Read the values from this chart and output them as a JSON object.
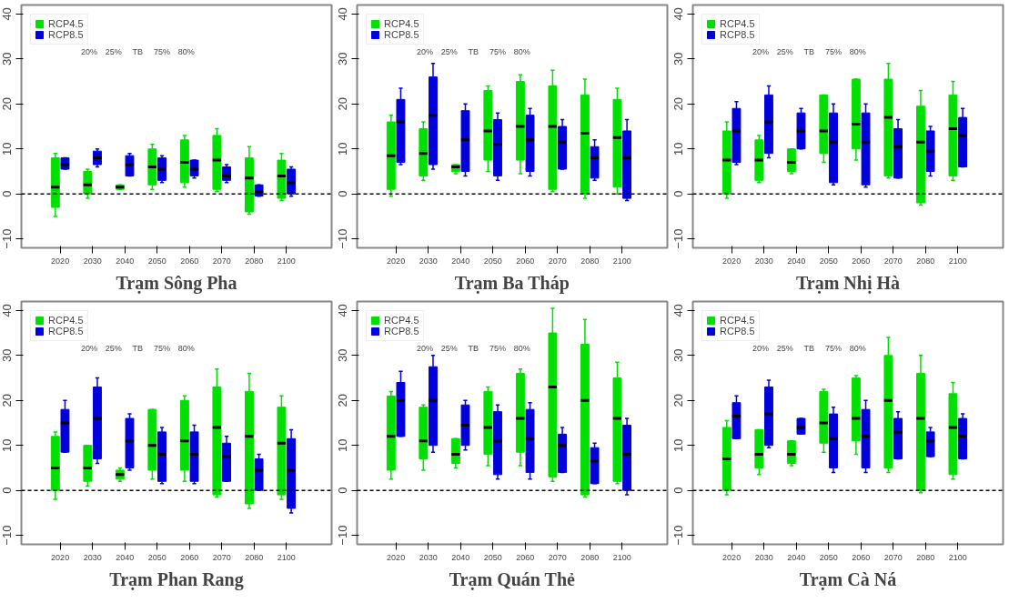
{
  "chart_data": [
    {
      "type": "box",
      "title": "Trạm Sông Pha",
      "categories": [
        "2020",
        "2030",
        "2040",
        "2050",
        "2060",
        "2070",
        "2080",
        "2100"
      ],
      "ylim": [
        -12,
        42
      ],
      "yticks": [
        -10,
        0,
        10,
        20,
        30,
        40
      ],
      "grid": false,
      "legend": "top left",
      "ref_lines": [
        {
          "axis": "y",
          "value": 0,
          "line_style": "dashed"
        }
      ],
      "annotations": [
        "20%",
        "25%",
        "TB",
        "75%",
        "80%"
      ],
      "series": [
        {
          "name": "RCP4.5",
          "color": "#00e000",
          "boxes": [
            {
              "low": -5,
              "q1": -3,
              "median": 1.5,
              "q3": 8,
              "high": 9
            },
            {
              "low": -1,
              "q1": 0,
              "median": 2,
              "q3": 5,
              "high": 5.5
            },
            {
              "low": 1,
              "q1": 1,
              "median": 1.5,
              "q3": 2,
              "high": 2
            },
            {
              "low": 1,
              "q1": 2,
              "median": 6,
              "q3": 10,
              "high": 11
            },
            {
              "low": 1.5,
              "q1": 2.5,
              "median": 7,
              "q3": 12,
              "high": 13
            },
            {
              "low": 0.5,
              "q1": 1,
              "median": 7.5,
              "q3": 13,
              "high": 14.5
            },
            {
              "low": -4.5,
              "q1": -4,
              "median": 3.5,
              "q3": 8,
              "high": 10.5
            },
            {
              "low": -1.5,
              "q1": -1,
              "median": 4,
              "q3": 7.5,
              "high": 9
            }
          ]
        },
        {
          "name": "RCP8.5",
          "color": "#0000dd",
          "boxes": [
            {
              "low": 5.5,
              "q1": 5.5,
              "median": 6.5,
              "q3": 8,
              "high": 8
            },
            {
              "low": 6,
              "q1": 6.5,
              "median": 8,
              "q3": 9.5,
              "high": 10
            },
            {
              "low": 4,
              "q1": 4,
              "median": 6.5,
              "q3": 8.5,
              "high": 9
            },
            {
              "low": 2.5,
              "q1": 3,
              "median": 5.5,
              "q3": 8,
              "high": 8.5
            },
            {
              "low": 3.5,
              "q1": 4,
              "median": 5.5,
              "q3": 7.5,
              "high": 7.5
            },
            {
              "low": 2.5,
              "q1": 3,
              "median": 4,
              "q3": 6,
              "high": 6.5
            },
            {
              "low": -0.5,
              "q1": -0.5,
              "median": 0.5,
              "q3": 2,
              "high": 2
            },
            {
              "low": -0.5,
              "q1": 0,
              "median": 2.5,
              "q3": 5.5,
              "high": 6
            }
          ]
        }
      ]
    },
    {
      "type": "box",
      "title": "Trạm Ba Tháp",
      "categories": [
        "2020",
        "2030",
        "2040",
        "2050",
        "2060",
        "2070",
        "2080",
        "2100"
      ],
      "ylim": [
        -12,
        42
      ],
      "yticks": [
        -10,
        0,
        10,
        20,
        30,
        40
      ],
      "grid": false,
      "legend": "top left",
      "ref_lines": [
        {
          "axis": "y",
          "value": 0,
          "line_style": "dashed"
        }
      ],
      "annotations": [
        "20%",
        "25%",
        "TB",
        "75%",
        "80%"
      ],
      "series": [
        {
          "name": "RCP4.5",
          "color": "#00e000",
          "boxes": [
            {
              "low": -0.5,
              "q1": 1,
              "median": 8.5,
              "q3": 16,
              "high": 17.5
            },
            {
              "low": 3,
              "q1": 4,
              "median": 9,
              "q3": 14.5,
              "high": 16
            },
            {
              "low": 4.5,
              "q1": 5,
              "median": 6,
              "q3": 6.5,
              "high": 6.5
            },
            {
              "low": 5,
              "q1": 7.5,
              "median": 14,
              "q3": 23,
              "high": 24
            },
            {
              "low": 4.5,
              "q1": 7.5,
              "median": 15,
              "q3": 25,
              "high": 26.5
            },
            {
              "low": 0.5,
              "q1": 1,
              "median": 15,
              "q3": 24,
              "high": 27.5
            },
            {
              "low": -1,
              "q1": 0,
              "median": 13.5,
              "q3": 22,
              "high": 25.5
            },
            {
              "low": 0,
              "q1": 1.5,
              "median": 12.5,
              "q3": 21,
              "high": 23.5
            }
          ]
        },
        {
          "name": "RCP8.5",
          "color": "#0000dd",
          "boxes": [
            {
              "low": 6.5,
              "q1": 7,
              "median": 16,
              "q3": 21,
              "high": 23.5
            },
            {
              "low": 5.5,
              "q1": 6.5,
              "median": 17.5,
              "q3": 26,
              "high": 29
            },
            {
              "low": 4,
              "q1": 5,
              "median": 12,
              "q3": 18.5,
              "high": 20
            },
            {
              "low": 3,
              "q1": 4,
              "median": 11,
              "q3": 16.5,
              "high": 18
            },
            {
              "low": 4,
              "q1": 5,
              "median": 12,
              "q3": 17.5,
              "high": 19
            },
            {
              "low": 5.5,
              "q1": 5.5,
              "median": 11.5,
              "q3": 15,
              "high": 16.5
            },
            {
              "low": 3,
              "q1": 3.5,
              "median": 8,
              "q3": 10.5,
              "high": 12
            },
            {
              "low": -1.5,
              "q1": -1,
              "median": 8,
              "q3": 14,
              "high": 16.5
            }
          ]
        }
      ]
    },
    {
      "type": "box",
      "title": "Trạm Nhị Hà",
      "categories": [
        "2020",
        "2030",
        "2040",
        "2050",
        "2060",
        "2070",
        "2080",
        "2100"
      ],
      "ylim": [
        -12,
        42
      ],
      "yticks": [
        -10,
        0,
        10,
        20,
        30,
        40
      ],
      "grid": false,
      "legend": "top left",
      "ref_lines": [
        {
          "axis": "y",
          "value": 0,
          "line_style": "dashed"
        }
      ],
      "annotations": [
        "20%",
        "25%",
        "TB",
        "75%",
        "80%"
      ],
      "series": [
        {
          "name": "RCP4.5",
          "color": "#00e000",
          "boxes": [
            {
              "low": -1,
              "q1": 0,
              "median": 7.5,
              "q3": 14,
              "high": 16
            },
            {
              "low": 2.5,
              "q1": 3,
              "median": 7.5,
              "q3": 12,
              "high": 13
            },
            {
              "low": 4.5,
              "q1": 5,
              "median": 7,
              "q3": 10,
              "high": 10
            },
            {
              "low": 7,
              "q1": 9,
              "median": 14,
              "q3": 22,
              "high": 22
            },
            {
              "low": 7.5,
              "q1": 10,
              "median": 15.5,
              "q3": 25.5,
              "high": 25.5
            },
            {
              "low": 3.5,
              "q1": 4,
              "median": 17,
              "q3": 25.5,
              "high": 29
            },
            {
              "low": -2.5,
              "q1": -2,
              "median": 11.5,
              "q3": 19.5,
              "high": 23
            },
            {
              "low": 3,
              "q1": 4,
              "median": 14.5,
              "q3": 22,
              "high": 25
            }
          ]
        },
        {
          "name": "RCP8.5",
          "color": "#0000dd",
          "boxes": [
            {
              "low": 6.5,
              "q1": 7,
              "median": 14,
              "q3": 19,
              "high": 20.5
            },
            {
              "low": 8,
              "q1": 9,
              "median": 16,
              "q3": 22,
              "high": 24
            },
            {
              "low": 10,
              "q1": 10,
              "median": 14,
              "q3": 18,
              "high": 19
            },
            {
              "low": 2,
              "q1": 2.5,
              "median": 11.5,
              "q3": 18,
              "high": 20
            },
            {
              "low": 1.5,
              "q1": 2,
              "median": 11.5,
              "q3": 18,
              "high": 20
            },
            {
              "low": 3.5,
              "q1": 3.5,
              "median": 10.5,
              "q3": 14.5,
              "high": 16.5
            },
            {
              "low": 4,
              "q1": 5,
              "median": 9.5,
              "q3": 14,
              "high": 15
            },
            {
              "low": 6,
              "q1": 6,
              "median": 13,
              "q3": 17,
              "high": 19
            }
          ]
        }
      ]
    },
    {
      "type": "box",
      "title": "Trạm Phan Rang",
      "categories": [
        "2020",
        "2030",
        "2040",
        "2050",
        "2060",
        "2070",
        "2080",
        "2100"
      ],
      "ylim": [
        -12,
        42
      ],
      "yticks": [
        -10,
        0,
        10,
        20,
        30,
        40
      ],
      "grid": false,
      "legend": "top left",
      "ref_lines": [
        {
          "axis": "y",
          "value": 0,
          "line_style": "dashed"
        }
      ],
      "annotations": [
        "20%",
        "25%",
        "TB",
        "75%",
        "80%"
      ],
      "series": [
        {
          "name": "RCP4.5",
          "color": "#00e000",
          "boxes": [
            {
              "low": -2,
              "q1": 0,
              "median": 5,
              "q3": 12,
              "high": 13
            },
            {
              "low": 1,
              "q1": 2,
              "median": 5,
              "q3": 10,
              "high": 10
            },
            {
              "low": 2,
              "q1": 2.5,
              "median": 3.5,
              "q3": 4.5,
              "high": 5
            },
            {
              "low": 2.5,
              "q1": 4.5,
              "median": 10,
              "q3": 18,
              "high": 18
            },
            {
              "low": 2,
              "q1": 4.5,
              "median": 11,
              "q3": 20,
              "high": 21
            },
            {
              "low": -1.5,
              "q1": -1,
              "median": 14,
              "q3": 23,
              "high": 27
            },
            {
              "low": -4,
              "q1": -3,
              "median": 12,
              "q3": 22,
              "high": 26
            },
            {
              "low": -2,
              "q1": -1,
              "median": 10.5,
              "q3": 18.5,
              "high": 21
            }
          ]
        },
        {
          "name": "RCP8.5",
          "color": "#0000dd",
          "boxes": [
            {
              "low": 8.5,
              "q1": 8.5,
              "median": 15,
              "q3": 18,
              "high": 20
            },
            {
              "low": 6,
              "q1": 7,
              "median": 16,
              "q3": 23,
              "high": 25
            },
            {
              "low": 4.5,
              "q1": 5,
              "median": 11,
              "q3": 16,
              "high": 17
            },
            {
              "low": 1.5,
              "q1": 2,
              "median": 8,
              "q3": 13,
              "high": 14
            },
            {
              "low": 1.5,
              "q1": 2,
              "median": 8,
              "q3": 13,
              "high": 14.5
            },
            {
              "low": 2,
              "q1": 2,
              "median": 7.5,
              "q3": 10.5,
              "high": 12
            },
            {
              "low": 0,
              "q1": 0,
              "median": 4.5,
              "q3": 7,
              "high": 8
            },
            {
              "low": -5,
              "q1": -4,
              "median": 4.5,
              "q3": 11.5,
              "high": 13.5
            }
          ]
        }
      ]
    },
    {
      "type": "box",
      "title": "Trạm Quán Thẻ",
      "categories": [
        "2020",
        "2030",
        "2040",
        "2050",
        "2060",
        "2070",
        "2080",
        "2100"
      ],
      "ylim": [
        -12,
        42
      ],
      "yticks": [
        -10,
        0,
        10,
        20,
        30,
        40
      ],
      "grid": false,
      "legend": "top left",
      "ref_lines": [
        {
          "axis": "y",
          "value": 0,
          "line_style": "dashed"
        }
      ],
      "annotations": [
        "20%",
        "25%",
        "TB",
        "75%",
        "80%"
      ],
      "series": [
        {
          "name": "RCP4.5",
          "color": "#00e000",
          "boxes": [
            {
              "low": 2.5,
              "q1": 4.5,
              "median": 12,
              "q3": 21,
              "high": 22
            },
            {
              "low": 4.5,
              "q1": 7,
              "median": 11,
              "q3": 18.5,
              "high": 19
            },
            {
              "low": 5,
              "q1": 6,
              "median": 8,
              "q3": 11.5,
              "high": 11.5
            },
            {
              "low": 5.5,
              "q1": 8,
              "median": 14,
              "q3": 22,
              "high": 23
            },
            {
              "low": 5.5,
              "q1": 8.5,
              "median": 16,
              "q3": 26,
              "high": 27
            },
            {
              "low": 2,
              "q1": 3,
              "median": 23,
              "q3": 35,
              "high": 40.5
            },
            {
              "low": -1.5,
              "q1": -1,
              "median": 20,
              "q3": 32.5,
              "high": 38
            },
            {
              "low": 1.5,
              "q1": 2,
              "median": 16,
              "q3": 25,
              "high": 28.5
            }
          ]
        },
        {
          "name": "RCP8.5",
          "color": "#0000dd",
          "boxes": [
            {
              "low": 12,
              "q1": 12,
              "median": 20,
              "q3": 24,
              "high": 26.5
            },
            {
              "low": 8.5,
              "q1": 10,
              "median": 20,
              "q3": 27.5,
              "high": 30
            },
            {
              "low": 9,
              "q1": 10,
              "median": 14.5,
              "q3": 19,
              "high": 20
            },
            {
              "low": 2.5,
              "q1": 3.5,
              "median": 11,
              "q3": 17.5,
              "high": 19
            },
            {
              "low": 2.5,
              "q1": 4,
              "median": 11.5,
              "q3": 18,
              "high": 19.5
            },
            {
              "low": 4,
              "q1": 4,
              "median": 10,
              "q3": 12.5,
              "high": 14
            },
            {
              "low": 1.5,
              "q1": 1.5,
              "median": 6.5,
              "q3": 9.5,
              "high": 10.5
            },
            {
              "low": -1,
              "q1": 0,
              "median": 8,
              "q3": 14.5,
              "high": 16
            }
          ]
        }
      ]
    },
    {
      "type": "box",
      "title": "Trạm Cà Ná",
      "categories": [
        "2020",
        "2030",
        "2040",
        "2050",
        "2060",
        "2070",
        "2080",
        "2100"
      ],
      "ylim": [
        -12,
        42
      ],
      "yticks": [
        -10,
        0,
        10,
        20,
        30,
        40
      ],
      "grid": false,
      "legend": "top left",
      "ref_lines": [
        {
          "axis": "y",
          "value": 0,
          "line_style": "dashed"
        }
      ],
      "annotations": [
        "20%",
        "25%",
        "TB",
        "75%",
        "80%"
      ],
      "series": [
        {
          "name": "RCP4.5",
          "color": "#00e000",
          "boxes": [
            {
              "low": -1,
              "q1": 0,
              "median": 7,
              "q3": 14,
              "high": 15.5
            },
            {
              "low": 3.5,
              "q1": 5,
              "median": 8,
              "q3": 13.5,
              "high": 13.5
            },
            {
              "low": 5.5,
              "q1": 6,
              "median": 8,
              "q3": 11,
              "high": 11
            },
            {
              "low": 8.5,
              "q1": 10.5,
              "median": 15,
              "q3": 22,
              "high": 22.5
            },
            {
              "low": 8,
              "q1": 11,
              "median": 16,
              "q3": 25,
              "high": 25.5
            },
            {
              "low": 4,
              "q1": 5,
              "median": 20,
              "q3": 30,
              "high": 34
            },
            {
              "low": -0.5,
              "q1": 0,
              "median": 16,
              "q3": 26,
              "high": 30
            },
            {
              "low": 2.5,
              "q1": 3.5,
              "median": 14,
              "q3": 21.5,
              "high": 24
            }
          ]
        },
        {
          "name": "RCP8.5",
          "color": "#0000dd",
          "boxes": [
            {
              "low": 11.5,
              "q1": 11.5,
              "median": 16.5,
              "q3": 19.5,
              "high": 21
            },
            {
              "low": 9.5,
              "q1": 10,
              "median": 17,
              "q3": 23,
              "high": 24.5
            },
            {
              "low": 12.5,
              "q1": 12.5,
              "median": 14,
              "q3": 16,
              "high": 16
            },
            {
              "low": 4,
              "q1": 5,
              "median": 11.5,
              "q3": 17,
              "high": 18.5
            },
            {
              "low": 4,
              "q1": 5,
              "median": 12,
              "q3": 18,
              "high": 20
            },
            {
              "low": 7,
              "q1": 7,
              "median": 13,
              "q3": 16,
              "high": 17.5
            },
            {
              "low": 7.5,
              "q1": 7.5,
              "median": 11,
              "q3": 13,
              "high": 14
            },
            {
              "low": 7,
              "q1": 7,
              "median": 12,
              "q3": 16,
              "high": 17
            }
          ]
        }
      ]
    }
  ]
}
